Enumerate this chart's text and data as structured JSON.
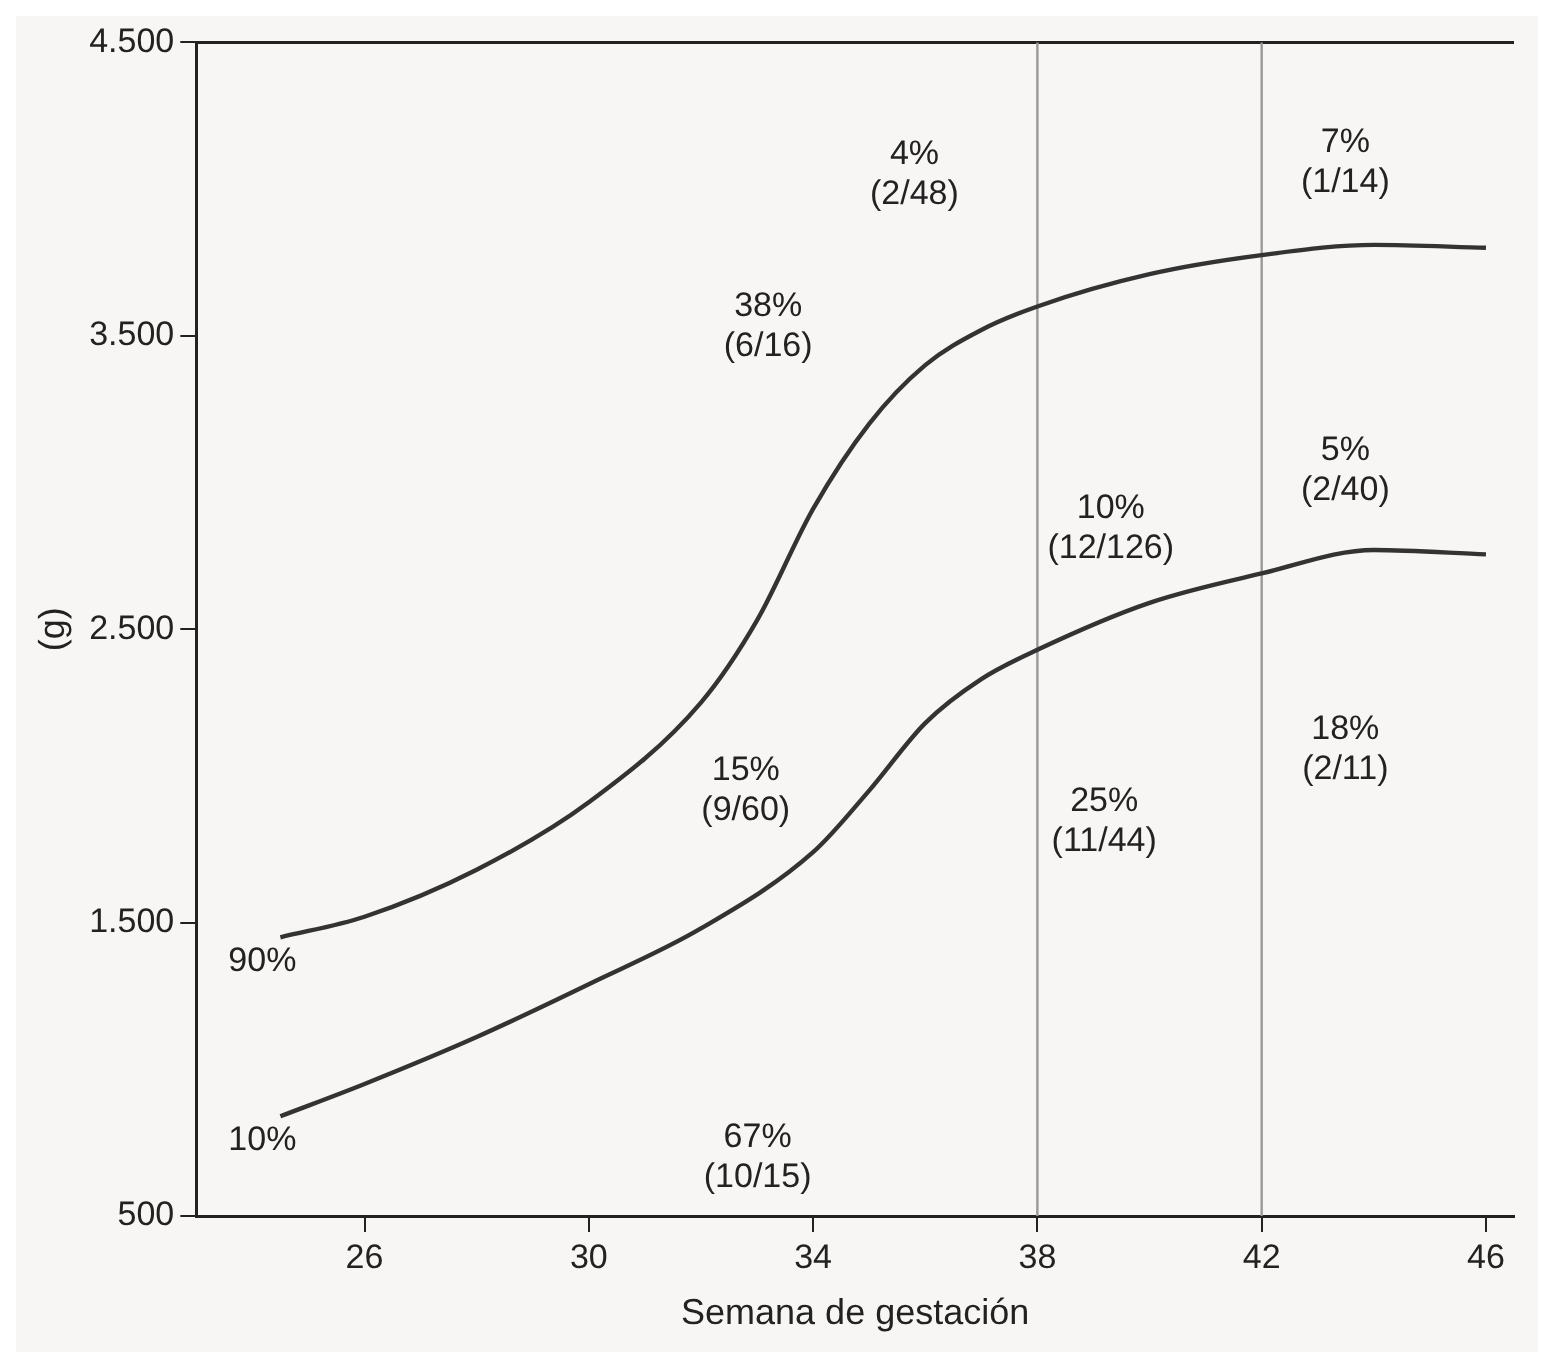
{
  "chart_data": {
    "type": "line",
    "xlabel": "Semana de gestación",
    "ylabel": "(g)",
    "xlim": [
      23,
      46.5
    ],
    "xticks": [
      26,
      30,
      34,
      38,
      42,
      46
    ],
    "ylim": [
      500,
      4500
    ],
    "yticks": [
      {
        "value": 500,
        "label": "500"
      },
      {
        "value": 1500,
        "label": "1.500"
      },
      {
        "value": 2500,
        "label": "2.500"
      },
      {
        "value": 3500,
        "label": "3.500"
      },
      {
        "value": 4500,
        "label": "4.500"
      }
    ],
    "grid": false,
    "marker": "none",
    "line_style": "solid",
    "series": [
      {
        "name": "90%",
        "color": "#333333",
        "x": [
          24.5,
          26,
          28,
          30,
          32,
          33,
          34,
          35,
          36,
          37,
          38,
          40,
          42,
          44,
          46
        ],
        "values": [
          1450,
          1520,
          1680,
          1910,
          2250,
          2530,
          2910,
          3200,
          3400,
          3520,
          3600,
          3710,
          3775,
          3810,
          3800
        ]
      },
      {
        "name": "10%",
        "color": "#333333",
        "x": [
          24.5,
          26,
          28,
          30,
          32,
          34,
          35,
          36,
          37,
          38,
          40,
          42,
          44,
          46
        ],
        "values": [
          840,
          950,
          1110,
          1290,
          1480,
          1740,
          1950,
          2180,
          2330,
          2430,
          2590,
          2690,
          2770,
          2755
        ]
      }
    ],
    "ref_lines": [
      {
        "axis": "x",
        "value": 38,
        "color": "#999999"
      },
      {
        "axis": "x",
        "value": 42,
        "color": "#999999"
      }
    ],
    "annotations": [
      "4%\n(2/48)",
      "7%\n(1/14)",
      "38%\n(6/16)",
      "10%\n(12/126)",
      "5%\n(2/40)",
      "15%\n(9/60)",
      "25%\n(11/44)",
      "18%\n(2/11)",
      "67%\n(10/15)"
    ]
  }
}
